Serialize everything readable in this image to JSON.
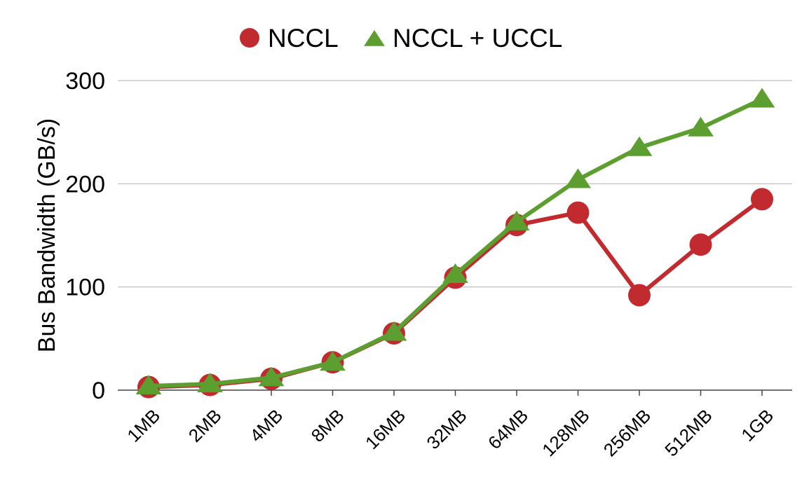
{
  "chart_data": {
    "type": "line",
    "categories": [
      "1MB",
      "2MB",
      "4MB",
      "8MB",
      "16MB",
      "32MB",
      "64MB",
      "128MB",
      "256MB",
      "512MB",
      "1GB"
    ],
    "series": [
      {
        "name": "NCCL",
        "marker": "circle",
        "color": "#c12b2f",
        "values": [
          3,
          5,
          11,
          27,
          55,
          109,
          160,
          172,
          92,
          141,
          185
        ]
      },
      {
        "name": "NCCL + UCCL",
        "marker": "triangle",
        "color": "#5c9e30",
        "values": [
          4,
          6,
          12,
          27,
          56,
          112,
          163,
          204,
          235,
          254,
          282
        ]
      }
    ],
    "xlabel": "",
    "ylabel": "Bus Bandwidth (GB/s)",
    "ylim": [
      0,
      300
    ],
    "yticks": [
      "0",
      "100",
      "200",
      "300"
    ],
    "grid": "horizontal",
    "legend_position": "top-center"
  }
}
